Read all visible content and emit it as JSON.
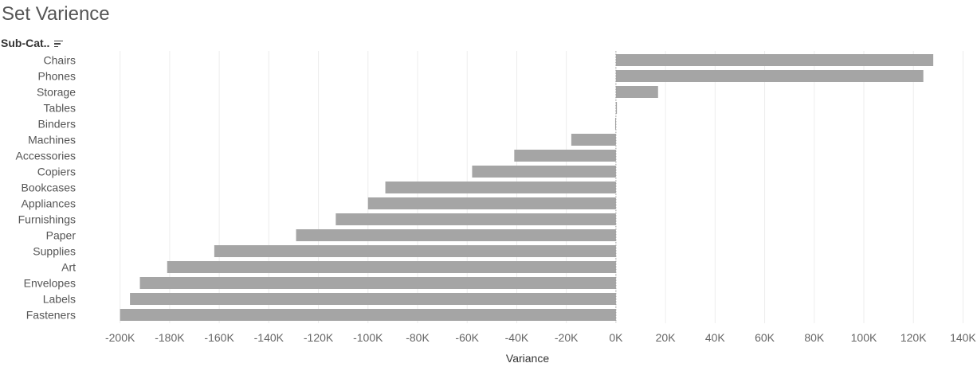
{
  "title": "Set Varience",
  "row_header": {
    "label": "Sub-Cat..",
    "sort_icon": "sort-descending-icon"
  },
  "colors": {
    "bar": "#a5a5a5",
    "grid": "#ececec",
    "zero_line": "#999999"
  },
  "chart_data": {
    "type": "bar",
    "orientation": "horizontal",
    "title": "Set Varience",
    "xlabel": "Variance",
    "ylabel": "Sub-Cat..",
    "categories": [
      "Chairs",
      "Phones",
      "Storage",
      "Tables",
      "Binders",
      "Machines",
      "Accessories",
      "Copiers",
      "Bookcases",
      "Appliances",
      "Furnishings",
      "Paper",
      "Supplies",
      "Art",
      "Envelopes",
      "Labels",
      "Fasteners"
    ],
    "values": [
      128000,
      124000,
      17000,
      400,
      -300,
      -18000,
      -41000,
      -58000,
      -93000,
      -100000,
      -113000,
      -129000,
      -162000,
      -181000,
      -192000,
      -196000,
      -200000
    ],
    "xlim": [
      -215000,
      145000
    ],
    "xticks": [
      -200000,
      -180000,
      -160000,
      -140000,
      -120000,
      -100000,
      -80000,
      -60000,
      -40000,
      -20000,
      0,
      20000,
      40000,
      60000,
      80000,
      100000,
      120000,
      140000
    ],
    "xtick_labels": [
      "-200K",
      "-180K",
      "-160K",
      "-140K",
      "-120K",
      "-100K",
      "-80K",
      "-60K",
      "-40K",
      "-20K",
      "0K",
      "20K",
      "40K",
      "60K",
      "80K",
      "100K",
      "120K",
      "140K"
    ],
    "grid": true
  }
}
